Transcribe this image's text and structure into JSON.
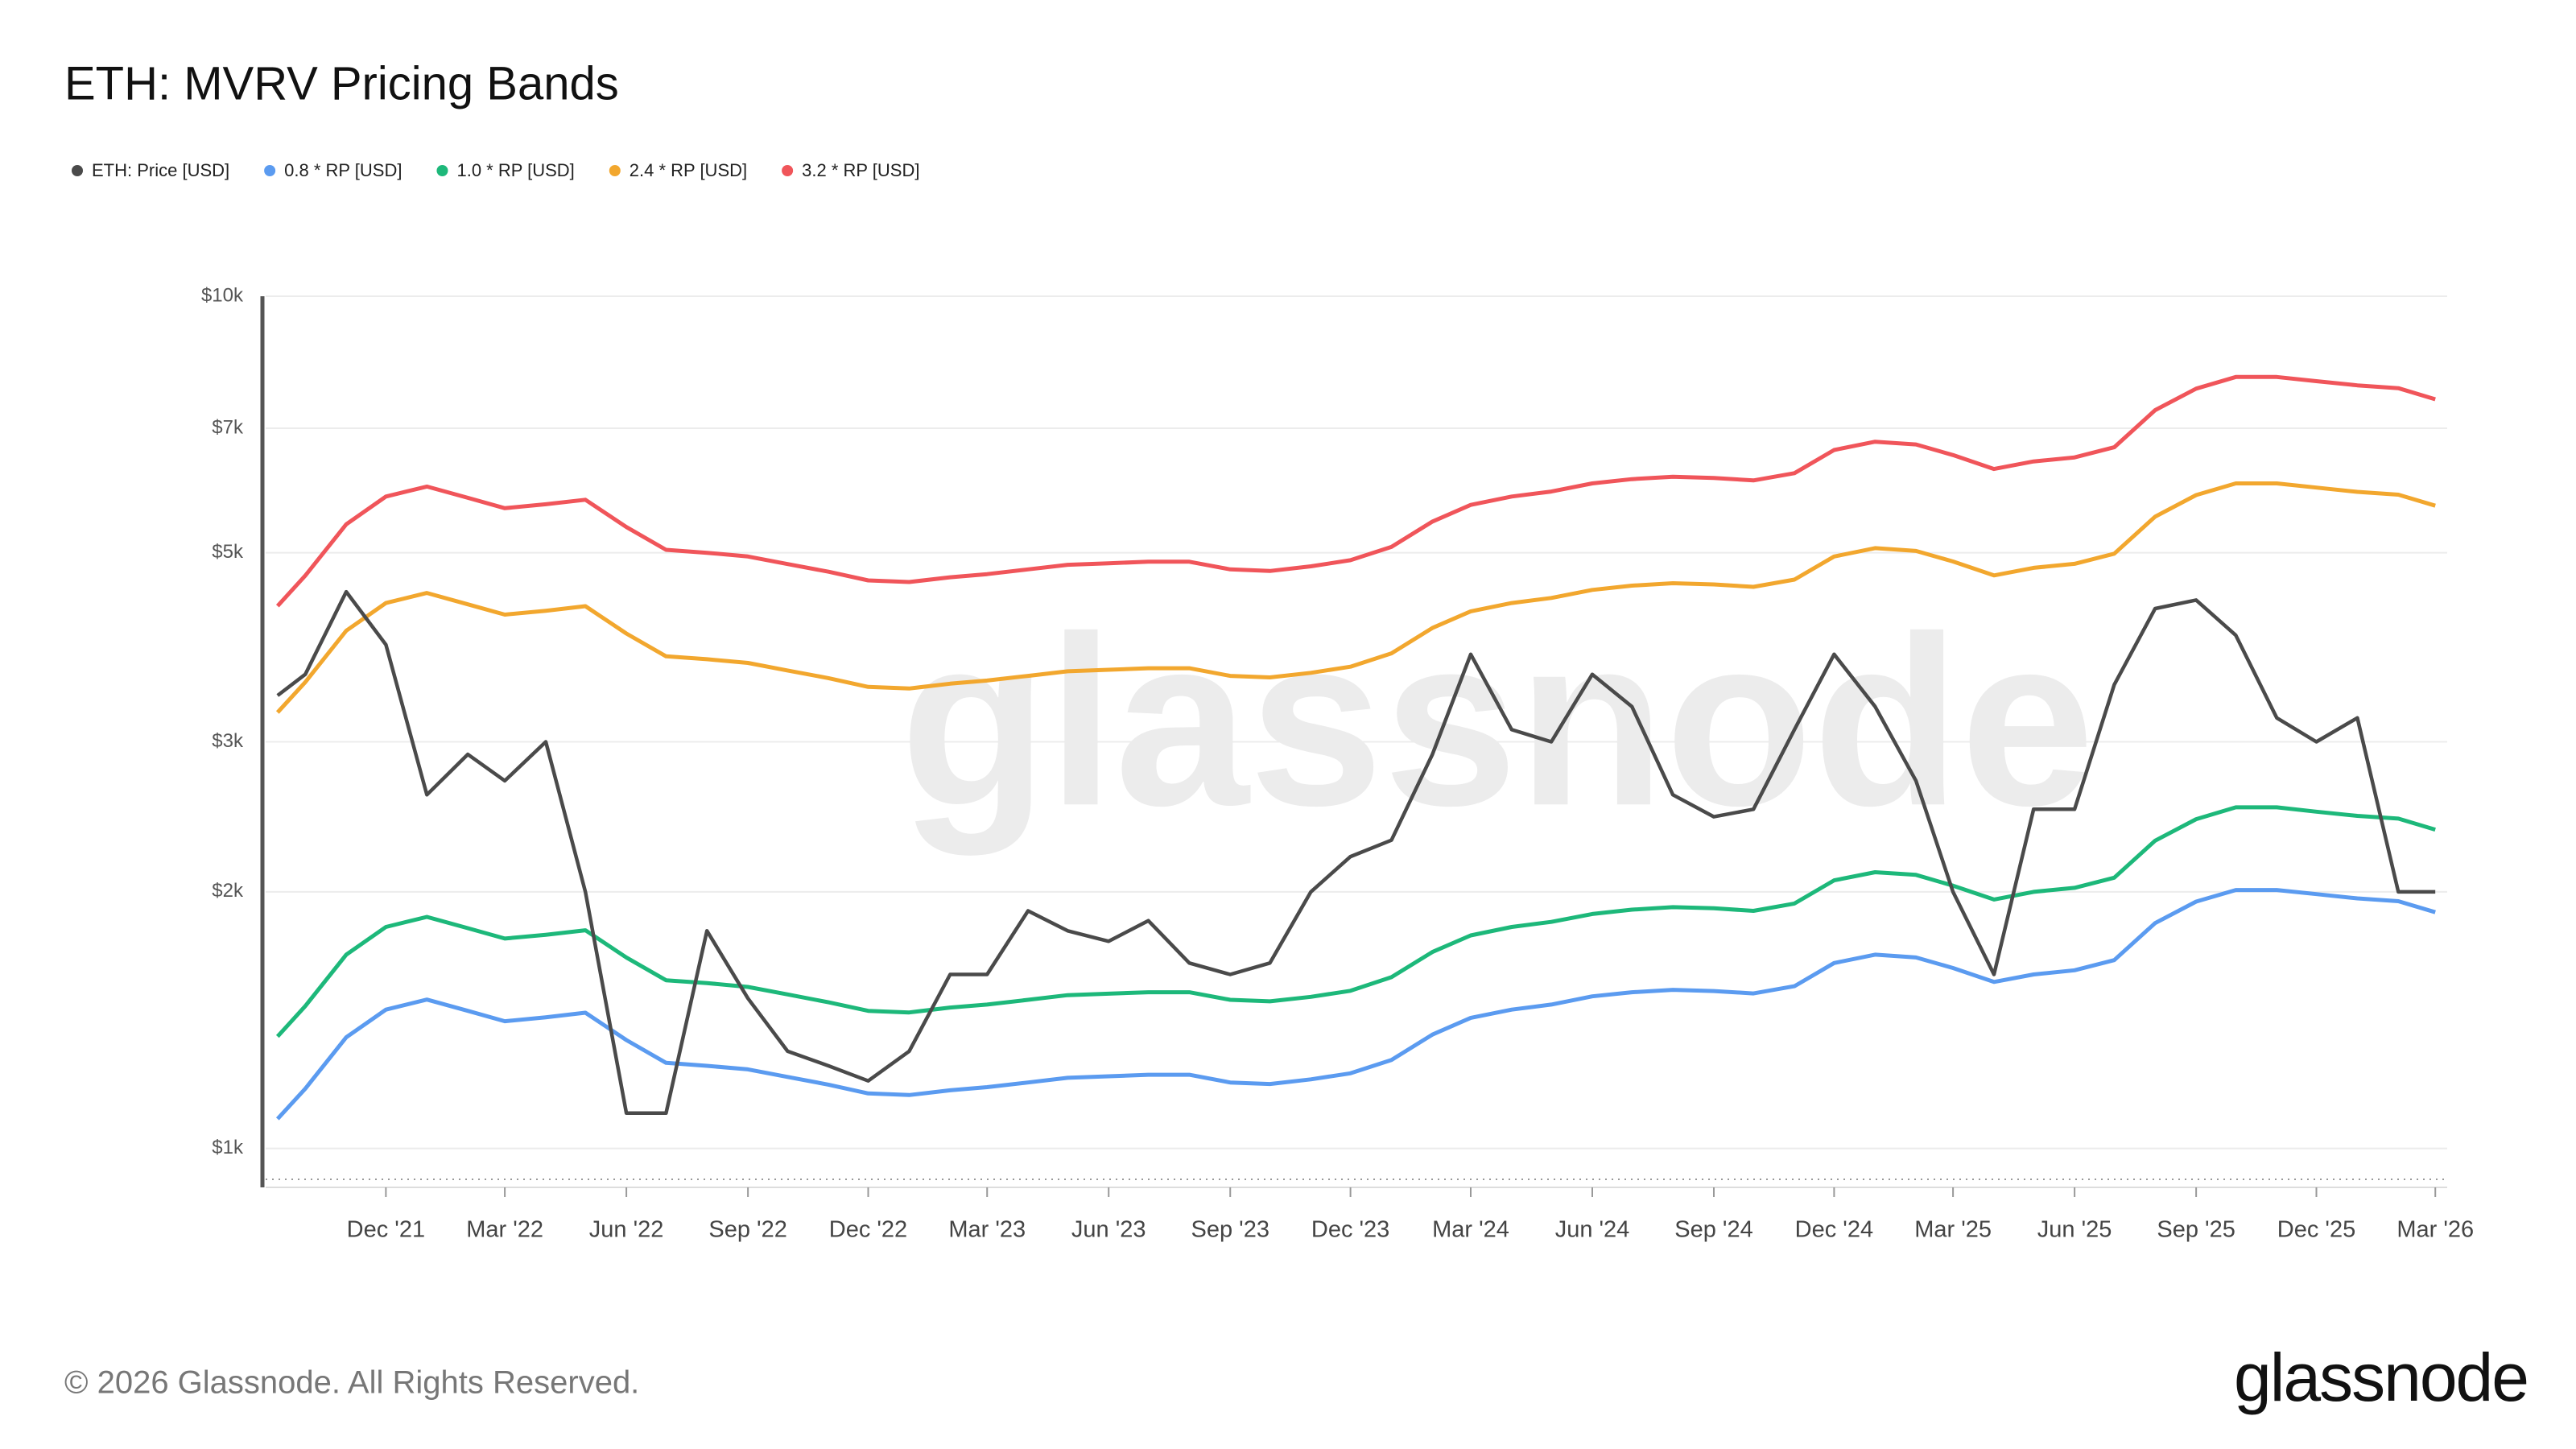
{
  "chart_data": {
    "type": "line",
    "title": "ETH: MVRV Pricing Bands",
    "log_scale": true,
    "grid": true,
    "legend_position": "top-left",
    "watermark": "glassnode",
    "footer": "© 2026 Glassnode. All Rights Reserved.",
    "logo": "glassnode",
    "xlim": [
      "2021-09-01",
      "2026-03-10"
    ],
    "xticks": [
      {
        "value": "2021-12-01",
        "label": "Dec '21"
      },
      {
        "value": "2022-03-01",
        "label": "Mar '22"
      },
      {
        "value": "2022-06-01",
        "label": "Jun '22"
      },
      {
        "value": "2022-09-01",
        "label": "Sep '22"
      },
      {
        "value": "2022-12-01",
        "label": "Dec '22"
      },
      {
        "value": "2023-03-01",
        "label": "Mar '23"
      },
      {
        "value": "2023-06-01",
        "label": "Jun '23"
      },
      {
        "value": "2023-09-01",
        "label": "Sep '23"
      },
      {
        "value": "2023-12-01",
        "label": "Dec '23"
      },
      {
        "value": "2024-03-01",
        "label": "Mar '24"
      },
      {
        "value": "2024-06-01",
        "label": "Jun '24"
      },
      {
        "value": "2024-09-01",
        "label": "Sep '24"
      },
      {
        "value": "2024-12-01",
        "label": "Dec '24"
      },
      {
        "value": "2025-03-01",
        "label": "Mar '25"
      },
      {
        "value": "2025-06-01",
        "label": "Jun '25"
      },
      {
        "value": "2025-09-01",
        "label": "Sep '25"
      },
      {
        "value": "2025-12-01",
        "label": "Dec '25"
      },
      {
        "value": "2026-03-01",
        "label": "Mar '26"
      }
    ],
    "ylim": [
      900,
      10000
    ],
    "yticks": [
      {
        "value": 1000,
        "label": "$1k"
      },
      {
        "value": 2000,
        "label": "$2k"
      },
      {
        "value": 3000,
        "label": "$3k"
      },
      {
        "value": 5000,
        "label": "$5k"
      },
      {
        "value": 7000,
        "label": "$7k"
      },
      {
        "value": 10000,
        "label": "$10k"
      }
    ],
    "x": [
      "2021-09-10",
      "2021-10-01",
      "2021-11-01",
      "2021-12-01",
      "2022-01-01",
      "2022-02-01",
      "2022-03-01",
      "2022-04-01",
      "2022-05-01",
      "2022-06-01",
      "2022-07-01",
      "2022-08-01",
      "2022-09-01",
      "2022-10-01",
      "2022-11-01",
      "2022-12-01",
      "2023-01-01",
      "2023-02-01",
      "2023-03-01",
      "2023-04-01",
      "2023-05-01",
      "2023-06-01",
      "2023-07-01",
      "2023-08-01",
      "2023-09-01",
      "2023-10-01",
      "2023-11-01",
      "2023-12-01",
      "2024-01-01",
      "2024-02-01",
      "2024-03-01",
      "2024-04-01",
      "2024-05-01",
      "2024-06-01",
      "2024-07-01",
      "2024-08-01",
      "2024-09-01",
      "2024-10-01",
      "2024-11-01",
      "2024-12-01",
      "2025-01-01",
      "2025-02-01",
      "2025-03-01",
      "2025-04-01",
      "2025-05-01",
      "2025-06-01",
      "2025-07-01",
      "2025-08-01",
      "2025-09-01",
      "2025-10-01",
      "2025-11-01",
      "2025-12-01",
      "2026-01-01",
      "2026-02-01",
      "2026-03-01"
    ],
    "series": [
      {
        "name": "ETH: Price [USD]",
        "color": "#4a4a4a",
        "values": [
          3400,
          3600,
          4500,
          3900,
          2600,
          2900,
          2700,
          3000,
          2000,
          1100,
          1100,
          1800,
          1500,
          1300,
          1250,
          1200,
          1300,
          1600,
          1600,
          1900,
          1800,
          1750,
          1850,
          1650,
          1600,
          1650,
          2000,
          2200,
          2300,
          2900,
          3800,
          3100,
          3000,
          3600,
          3300,
          2600,
          2450,
          2500,
          3100,
          3800,
          3300,
          2700,
          2000,
          1600,
          2500,
          2500,
          3500,
          4300,
          4400,
          4000,
          3200,
          3000,
          3200,
          2000,
          2000
        ]
      },
      {
        "name": "0.8 * RP [USD]",
        "color": "#5b9bf0",
        "values": [
          1083,
          1175,
          1350,
          1455,
          1495,
          1450,
          1410,
          1425,
          1443,
          1340,
          1260,
          1250,
          1238,
          1213,
          1188,
          1160,
          1155,
          1170,
          1180,
          1195,
          1210,
          1215,
          1220,
          1220,
          1195,
          1190,
          1205,
          1225,
          1270,
          1360,
          1423,
          1455,
          1475,
          1508,
          1525,
          1535,
          1530,
          1520,
          1550,
          1650,
          1688,
          1675,
          1628,
          1568,
          1600,
          1618,
          1663,
          1838,
          1948,
          2010,
          2010,
          1988,
          1965,
          1950,
          1893
        ]
      },
      {
        "name": "1.0 * RP [USD]",
        "color": "#1db87a",
        "values": [
          1353,
          1469,
          1688,
          1819,
          1869,
          1813,
          1763,
          1781,
          1803,
          1675,
          1575,
          1563,
          1547,
          1516,
          1484,
          1450,
          1444,
          1463,
          1475,
          1494,
          1513,
          1519,
          1525,
          1525,
          1494,
          1488,
          1506,
          1531,
          1588,
          1700,
          1778,
          1819,
          1844,
          1884,
          1906,
          1919,
          1913,
          1900,
          1938,
          2063,
          2109,
          2094,
          2034,
          1959,
          2000,
          2022,
          2078,
          2297,
          2434,
          2513,
          2513,
          2484,
          2456,
          2438,
          2366
        ]
      },
      {
        "name": "2.4 * RP [USD]",
        "color": "#f2a72e",
        "values": [
          3248,
          3525,
          4050,
          4365,
          4485,
          4350,
          4230,
          4275,
          4328,
          4020,
          3780,
          3750,
          3713,
          3638,
          3563,
          3480,
          3465,
          3510,
          3540,
          3585,
          3630,
          3645,
          3660,
          3660,
          3585,
          3570,
          3615,
          3675,
          3810,
          4080,
          4268,
          4365,
          4425,
          4523,
          4575,
          4605,
          4590,
          4560,
          4650,
          4950,
          5063,
          5025,
          4883,
          4703,
          4800,
          4853,
          4988,
          5513,
          5843,
          6030,
          6030,
          5963,
          5895,
          5850,
          5678
        ]
      },
      {
        "name": "3.2 * RP [USD]",
        "color": "#f0555a",
        "values": [
          4330,
          4700,
          5400,
          5820,
          5980,
          5800,
          5640,
          5700,
          5770,
          5360,
          5040,
          5000,
          4950,
          4850,
          4750,
          4640,
          4620,
          4680,
          4720,
          4780,
          4840,
          4860,
          4880,
          4880,
          4780,
          4760,
          4820,
          4900,
          5080,
          5440,
          5690,
          5820,
          5900,
          6030,
          6100,
          6140,
          6120,
          6080,
          6200,
          6600,
          6750,
          6700,
          6510,
          6270,
          6400,
          6470,
          6650,
          7350,
          7790,
          8040,
          8040,
          7950,
          7860,
          7800,
          7570
        ]
      }
    ]
  }
}
